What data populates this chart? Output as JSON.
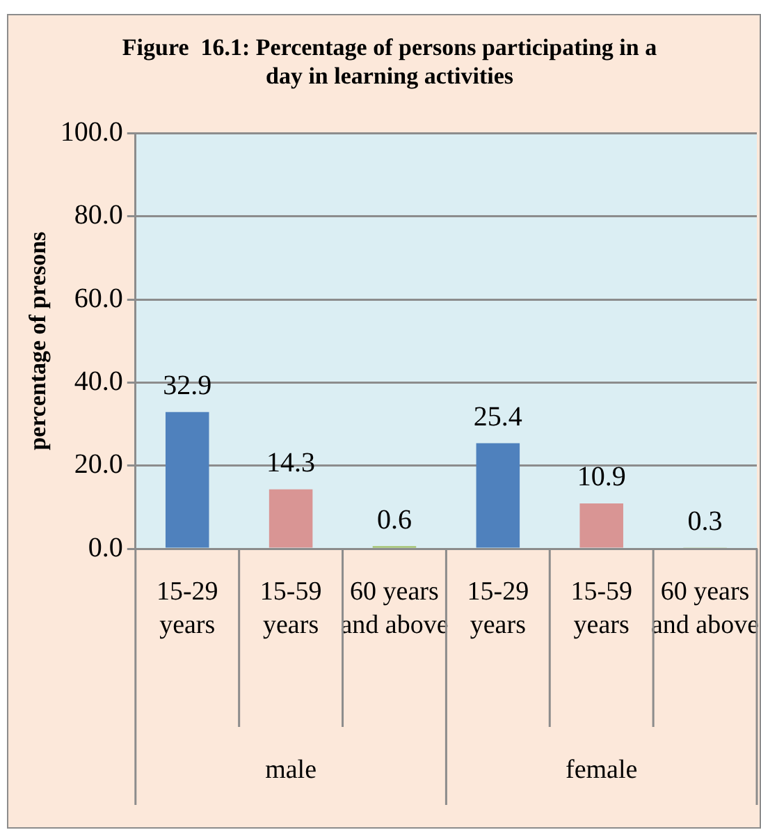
{
  "chart_data": {
    "type": "bar",
    "title": "Figure  16.1: Percentage of persons participating in a day in learning activities",
    "ylabel": "percentage of presons",
    "categories": [
      "15-29 years",
      "15-59 years",
      "60 years and above",
      "15-29 years",
      "15-59 years",
      "60 years and above"
    ],
    "values": [
      32.9,
      14.3,
      0.6,
      25.4,
      10.9,
      0.3
    ],
    "colors": [
      "#4f81bd",
      "#d99594",
      "#9bbb59",
      "#4f81bd",
      "#d99594",
      "#9bbb59"
    ],
    "ylim": [
      0,
      100
    ],
    "yticks": [
      {
        "value": 0,
        "label": "0.0"
      },
      {
        "value": 20,
        "label": "20.0"
      },
      {
        "value": 40,
        "label": "40.0"
      },
      {
        "value": 60,
        "label": "60.0"
      },
      {
        "value": 80,
        "label": "80.0"
      },
      {
        "value": 100,
        "label": "100.0"
      }
    ],
    "grid": "y",
    "data_labels": true,
    "annotations": [
      "male",
      "female"
    ]
  }
}
